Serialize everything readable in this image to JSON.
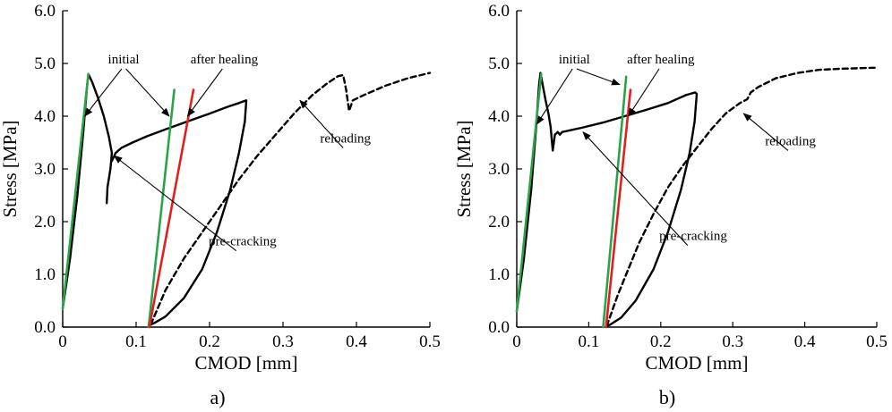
{
  "chart_data": [
    {
      "type": "line",
      "panel_label": "a)",
      "xlabel": "CMOD [mm]",
      "ylabel": "Stress [MPa]",
      "xlim": [
        0,
        0.5
      ],
      "ylim": [
        0,
        6
      ],
      "x_tick_labels": [
        "0",
        "0.1",
        "0.2",
        "0.3",
        "0.4",
        "0.5"
      ],
      "x_tick_values": [
        0,
        0.1,
        0.2,
        0.3,
        0.4,
        0.5
      ],
      "y_tick_labels": [
        "0.0",
        "1.0",
        "2.0",
        "3.0",
        "4.0",
        "5.0",
        "6.0"
      ],
      "y_tick_values": [
        0,
        1,
        2,
        3,
        4,
        5,
        6
      ],
      "series": [
        {
          "name": "pre-cracking",
          "style": "solid",
          "color": "#000000",
          "points": [
            [
              0,
              0.35
            ],
            [
              0.01,
              1.3
            ],
            [
              0.02,
              2.5
            ],
            [
              0.028,
              3.7
            ],
            [
              0.033,
              4.55
            ],
            [
              0.035,
              4.8
            ],
            [
              0.04,
              4.65
            ],
            [
              0.048,
              4.35
            ],
            [
              0.056,
              4.0
            ],
            [
              0.063,
              3.6
            ],
            [
              0.067,
              3.3
            ],
            [
              0.065,
              3.0
            ],
            [
              0.061,
              2.65
            ],
            [
              0.06,
              2.35
            ]
          ]
        },
        {
          "name": "healing",
          "style": "solid",
          "color": "#000000",
          "points": [
            [
              0.067,
              3.15
            ],
            [
              0.072,
              3.3
            ],
            [
              0.08,
              3.4
            ],
            [
              0.095,
              3.5
            ],
            [
              0.115,
              3.62
            ],
            [
              0.14,
              3.75
            ],
            [
              0.17,
              3.9
            ],
            [
              0.2,
              4.05
            ],
            [
              0.225,
              4.18
            ],
            [
              0.24,
              4.25
            ],
            [
              0.25,
              4.3
            ],
            [
              0.248,
              3.9
            ],
            [
              0.24,
              3.3
            ],
            [
              0.228,
              2.6
            ],
            [
              0.21,
              1.8
            ],
            [
              0.19,
              1.1
            ],
            [
              0.165,
              0.55
            ],
            [
              0.14,
              0.2
            ],
            [
              0.125,
              0.08
            ],
            [
              0.12,
              0.05
            ]
          ]
        },
        {
          "name": "reloading",
          "style": "dashed",
          "color": "#000000",
          "points": [
            [
              0.12,
              0.05
            ],
            [
              0.14,
              0.7
            ],
            [
              0.165,
              1.3
            ],
            [
              0.19,
              1.8
            ],
            [
              0.215,
              2.3
            ],
            [
              0.24,
              2.8
            ],
            [
              0.265,
              3.25
            ],
            [
              0.29,
              3.65
            ],
            [
              0.315,
              4.05
            ],
            [
              0.34,
              4.4
            ],
            [
              0.36,
              4.62
            ],
            [
              0.375,
              4.76
            ],
            [
              0.382,
              4.78
            ],
            [
              0.386,
              4.5
            ],
            [
              0.39,
              4.1
            ],
            [
              0.395,
              4.3
            ],
            [
              0.41,
              4.4
            ],
            [
              0.44,
              4.58
            ],
            [
              0.47,
              4.72
            ],
            [
              0.5,
              4.82
            ]
          ]
        },
        {
          "name": "initial stiffness",
          "style": "solid",
          "color": "#2ca34a",
          "points": [
            [
              0.0,
              0.35
            ],
            [
              0.035,
              4.8
            ]
          ]
        },
        {
          "name": "initial stiffness (reload)",
          "style": "solid",
          "color": "#2ca34a",
          "points": [
            [
              0.117,
              0.0
            ],
            [
              0.152,
              4.5
            ]
          ]
        },
        {
          "name": "after healing stiffness",
          "style": "solid",
          "color": "#e02020",
          "points": [
            [
              0.118,
              0.0
            ],
            [
              0.178,
              4.5
            ]
          ]
        }
      ],
      "annotations": [
        {
          "text": "initial",
          "anchor": [
            0.083,
            5.0
          ],
          "targets": [
            [
              0.03,
              4.0
            ],
            [
              0.145,
              4.0
            ]
          ]
        },
        {
          "text": "after healing",
          "anchor": [
            0.22,
            5.0
          ],
          "targets": [
            [
              0.17,
              4.0
            ]
          ]
        },
        {
          "text": "reloading",
          "anchor": [
            0.385,
            3.5
          ],
          "targets": [
            [
              0.323,
              4.3
            ]
          ]
        },
        {
          "text": "pre-cracking",
          "anchor": [
            0.245,
            1.55
          ],
          "targets": [
            [
              0.07,
              3.25
            ]
          ]
        }
      ]
    },
    {
      "type": "line",
      "panel_label": "b)",
      "xlabel": "CMOD [mm]",
      "ylabel": "Stress [MPa]",
      "xlim": [
        0,
        0.5
      ],
      "ylim": [
        0,
        6
      ],
      "x_tick_labels": [
        "0",
        "0.1",
        "0.2",
        "0.3",
        "0.4",
        "0.5"
      ],
      "x_tick_values": [
        0,
        0.1,
        0.2,
        0.3,
        0.4,
        0.5
      ],
      "y_tick_labels": [
        "0.0",
        "1.0",
        "2.0",
        "3.0",
        "4.0",
        "5.0",
        "6.0"
      ],
      "y_tick_values": [
        0,
        1,
        2,
        3,
        4,
        5,
        6
      ],
      "series": [
        {
          "name": "pre-cracking",
          "style": "solid",
          "color": "#000000",
          "points": [
            [
              0,
              0.3
            ],
            [
              0.01,
              1.3
            ],
            [
              0.02,
              2.6
            ],
            [
              0.027,
              3.8
            ],
            [
              0.031,
              4.6
            ],
            [
              0.033,
              4.82
            ],
            [
              0.036,
              4.6
            ],
            [
              0.04,
              4.3
            ],
            [
              0.044,
              4.05
            ],
            [
              0.047,
              3.8
            ],
            [
              0.049,
              3.5
            ],
            [
              0.05,
              3.35
            ]
          ]
        },
        {
          "name": "healing",
          "style": "solid",
          "color": "#000000",
          "points": [
            [
              0.05,
              3.35
            ],
            [
              0.053,
              3.65
            ],
            [
              0.057,
              3.7
            ],
            [
              0.06,
              3.65
            ],
            [
              0.063,
              3.7
            ],
            [
              0.07,
              3.72
            ],
            [
              0.09,
              3.78
            ],
            [
              0.12,
              3.88
            ],
            [
              0.15,
              4.0
            ],
            [
              0.18,
              4.12
            ],
            [
              0.21,
              4.25
            ],
            [
              0.235,
              4.4
            ],
            [
              0.248,
              4.45
            ],
            [
              0.25,
              4.42
            ],
            [
              0.247,
              3.9
            ],
            [
              0.24,
              3.3
            ],
            [
              0.228,
              2.6
            ],
            [
              0.21,
              1.8
            ],
            [
              0.19,
              1.1
            ],
            [
              0.165,
              0.5
            ],
            [
              0.145,
              0.18
            ],
            [
              0.13,
              0.05
            ],
            [
              0.125,
              0.02
            ]
          ]
        },
        {
          "name": "reloading",
          "style": "dashed",
          "color": "#000000",
          "points": [
            [
              0.125,
              0.02
            ],
            [
              0.14,
              0.6
            ],
            [
              0.155,
              1.1
            ],
            [
              0.17,
              1.6
            ],
            [
              0.19,
              2.15
            ],
            [
              0.21,
              2.65
            ],
            [
              0.23,
              3.05
            ],
            [
              0.25,
              3.4
            ],
            [
              0.27,
              3.75
            ],
            [
              0.29,
              4.05
            ],
            [
              0.31,
              4.25
            ],
            [
              0.32,
              4.32
            ],
            [
              0.325,
              4.45
            ],
            [
              0.335,
              4.55
            ],
            [
              0.36,
              4.72
            ],
            [
              0.39,
              4.82
            ],
            [
              0.42,
              4.88
            ],
            [
              0.45,
              4.9
            ],
            [
              0.5,
              4.92
            ]
          ]
        },
        {
          "name": "initial stiffness",
          "style": "solid",
          "color": "#2ca34a",
          "points": [
            [
              0.0,
              0.3
            ],
            [
              0.034,
              4.8
            ]
          ]
        },
        {
          "name": "initial stiffness (reload)",
          "style": "solid",
          "color": "#2ca34a",
          "points": [
            [
              0.12,
              0.0
            ],
            [
              0.152,
              4.75
            ]
          ]
        },
        {
          "name": "after healing stiffness",
          "style": "solid",
          "color": "#e02020",
          "points": [
            [
              0.124,
              0.0
            ],
            [
              0.158,
              4.5
            ]
          ]
        }
      ],
      "annotations": [
        {
          "text": "initial",
          "anchor": [
            0.08,
            5.0
          ],
          "targets": [
            [
              0.028,
              3.85
            ],
            [
              0.143,
              4.6
            ]
          ]
        },
        {
          "text": "after healing",
          "anchor": [
            0.2,
            5.0
          ],
          "targets": [
            [
              0.155,
              4.0
            ]
          ]
        },
        {
          "text": "reloading",
          "anchor": [
            0.38,
            3.45
          ],
          "targets": [
            [
              0.315,
              4.05
            ]
          ]
        },
        {
          "text": "pre-cracking",
          "anchor": [
            0.245,
            1.65
          ],
          "targets": [
            [
              0.092,
              3.7
            ]
          ]
        }
      ]
    }
  ]
}
